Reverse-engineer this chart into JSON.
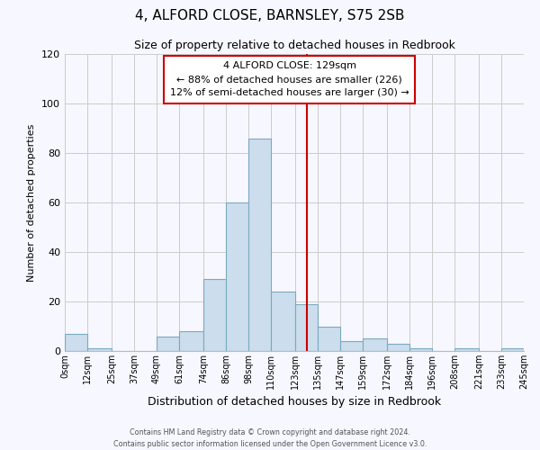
{
  "title": "4, ALFORD CLOSE, BARNSLEY, S75 2SB",
  "subtitle": "Size of property relative to detached houses in Redbrook",
  "xlabel": "Distribution of detached houses by size in Redbrook",
  "ylabel": "Number of detached properties",
  "bin_edges": [
    0,
    12,
    25,
    37,
    49,
    61,
    74,
    86,
    98,
    110,
    123,
    135,
    147,
    159,
    172,
    184,
    196,
    208,
    221,
    233,
    245
  ],
  "bin_labels": [
    "0sqm",
    "12sqm",
    "25sqm",
    "37sqm",
    "49sqm",
    "61sqm",
    "74sqm",
    "86sqm",
    "98sqm",
    "110sqm",
    "123sqm",
    "135sqm",
    "147sqm",
    "159sqm",
    "172sqm",
    "184sqm",
    "196sqm",
    "208sqm",
    "221sqm",
    "233sqm",
    "245sqm"
  ],
  "counts": [
    7,
    1,
    0,
    0,
    6,
    8,
    29,
    60,
    86,
    24,
    19,
    10,
    4,
    5,
    3,
    1,
    0,
    1,
    0,
    1
  ],
  "bar_color": "#ccdded",
  "bar_edge_color": "#7aaabf",
  "property_line_x": 129,
  "property_line_color": "#cc0000",
  "annotation_line1": "4 ALFORD CLOSE: 129sqm",
  "annotation_line2": "← 88% of detached houses are smaller (226)",
  "annotation_line3": "12% of semi-detached houses are larger (30) →",
  "annotation_box_facecolor": "#ffffff",
  "annotation_box_edgecolor": "#cc0000",
  "ylim": [
    0,
    120
  ],
  "yticks": [
    0,
    20,
    40,
    60,
    80,
    100,
    120
  ],
  "footnote": "Contains HM Land Registry data © Crown copyright and database right 2024.\nContains public sector information licensed under the Open Government Licence v3.0.",
  "grid_color": "#cccccc",
  "background_color": "#f7f7ff"
}
